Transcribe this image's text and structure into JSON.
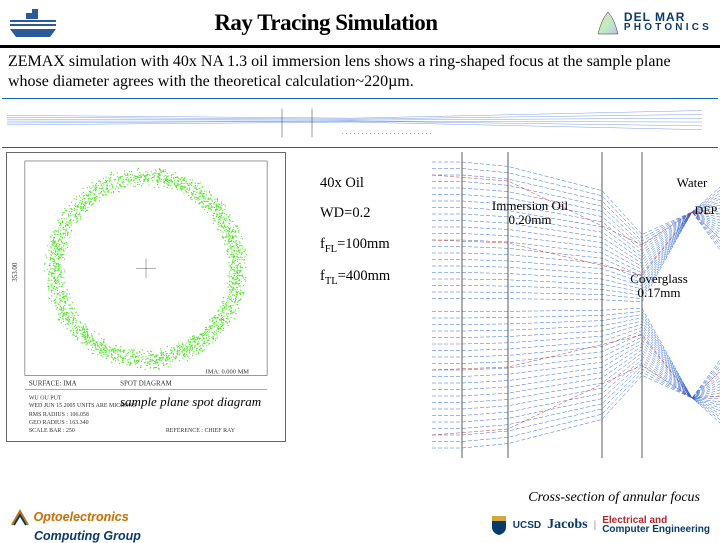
{
  "header": {
    "title": "Ray Tracing Simulation",
    "delmar_top": "DEL MAR",
    "delmar_bot": "PHOTONICS"
  },
  "description": "ZEMAX simulation with 40x NA 1.3 oil immersion lens shows a ring-shaped focus at the sample plane whose diameter agrees with the theoretical calculation~220µm.",
  "params": {
    "p1": "40x Oil",
    "p2": "WD=0.2",
    "p3_pre": "f",
    "p3_sub": "FL",
    "p3_post": "=100mm",
    "p4_pre": "f",
    "p4_sub": "TL",
    "p4_post": "=400mm"
  },
  "ray_labels": {
    "immersion_l1": "Immersion Oil",
    "immersion_l2": "0.20mm",
    "water": "Water",
    "depth": "DEP",
    "cover_l1": "Coverglass",
    "cover_l2": "0.17mm"
  },
  "captions": {
    "spot": "sample plane spot diagram",
    "cross": "Cross-section of annular focus"
  },
  "spot_legend": {
    "l1": "WED JUN 15 2005  UNITS ARE MICRONS",
    "l2": "RMS RADIUS :  106.058",
    "l3": "GEO RADIUS :  163.340",
    "l4": "SCALE BAR  :  250",
    "l5": "REFERENCE : CHIEF RAY",
    "header": "SPOT DIAGRAM",
    "ima": "IMA: 0.000 MM",
    "surface": "SURFACE: IMA",
    "axis": "353.00",
    "field": "WU OU PUT"
  },
  "footer": {
    "oe": "Optoelectronics",
    "cg": "Computing Group",
    "ucsd": "UCSD",
    "jacobs": "Jacobs",
    "ece1": "Electrical and",
    "ece2": "Computer Engineering"
  },
  "colors": {
    "ring_green": "#4ae020",
    "ray_blue": "#1d5bd6",
    "ray_red": "#c02020",
    "border_blue": "#1565c0",
    "delmar_blue": "#0a3a6a",
    "logo_blue": "#2a5a9a"
  }
}
